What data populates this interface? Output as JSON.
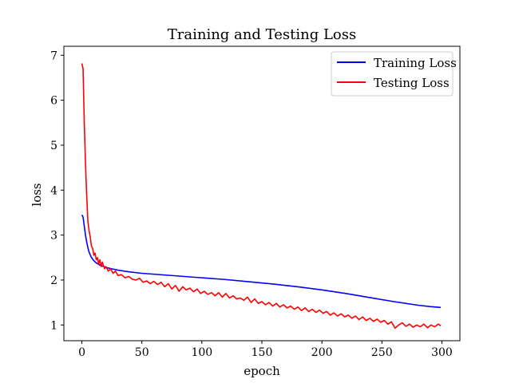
{
  "chart_data": {
    "type": "line",
    "title": "Training and Testing Loss",
    "xlabel": "epoch",
    "ylabel": "loss",
    "xlim": [
      -15,
      315
    ],
    "ylim": [
      0.65,
      7.2
    ],
    "xticks": [
      0,
      50,
      100,
      150,
      200,
      250,
      300
    ],
    "yticks": [
      1,
      2,
      3,
      4,
      5,
      6,
      7
    ],
    "grid": false,
    "legend_position": "top-right",
    "series": [
      {
        "name": "Training Loss",
        "color": "#0000ff",
        "x": [
          0,
          1,
          2,
          3,
          4,
          5,
          6,
          7,
          8,
          10,
          12,
          15,
          20,
          25,
          30,
          40,
          50,
          60,
          80,
          100,
          120,
          140,
          160,
          180,
          200,
          220,
          240,
          260,
          280,
          290,
          299
        ],
        "y": [
          3.45,
          3.4,
          3.2,
          3.0,
          2.85,
          2.72,
          2.62,
          2.56,
          2.5,
          2.43,
          2.38,
          2.33,
          2.28,
          2.25,
          2.22,
          2.18,
          2.15,
          2.13,
          2.09,
          2.05,
          2.01,
          1.96,
          1.91,
          1.85,
          1.78,
          1.7,
          1.61,
          1.52,
          1.44,
          1.41,
          1.39
        ]
      },
      {
        "name": "Testing Loss",
        "color": "#ff0000",
        "x": [
          0,
          1,
          2,
          3,
          4,
          5,
          6,
          7,
          8,
          9,
          10,
          11,
          12,
          13,
          14,
          15,
          16,
          17,
          18,
          19,
          20,
          22,
          24,
          26,
          28,
          30,
          33,
          36,
          39,
          42,
          45,
          48,
          51,
          54,
          57,
          60,
          63,
          66,
          69,
          72,
          75,
          78,
          81,
          84,
          87,
          90,
          93,
          96,
          99,
          102,
          105,
          108,
          111,
          114,
          117,
          120,
          123,
          126,
          129,
          132,
          135,
          138,
          141,
          144,
          147,
          150,
          153,
          156,
          159,
          162,
          165,
          168,
          171,
          174,
          177,
          180,
          183,
          186,
          189,
          192,
          195,
          198,
          201,
          204,
          207,
          210,
          213,
          216,
          219,
          222,
          225,
          228,
          231,
          234,
          237,
          240,
          243,
          246,
          249,
          252,
          255,
          258,
          261,
          264,
          267,
          270,
          273,
          276,
          279,
          282,
          285,
          288,
          291,
          294,
          297,
          299
        ],
        "y": [
          6.82,
          6.7,
          5.5,
          4.6,
          3.9,
          3.3,
          3.1,
          2.95,
          2.75,
          2.7,
          2.55,
          2.6,
          2.45,
          2.5,
          2.35,
          2.45,
          2.3,
          2.4,
          2.32,
          2.25,
          2.3,
          2.2,
          2.25,
          2.15,
          2.2,
          2.1,
          2.12,
          2.05,
          2.08,
          2.02,
          2.0,
          2.04,
          1.95,
          1.98,
          1.92,
          1.97,
          1.9,
          1.95,
          1.85,
          1.92,
          1.8,
          1.88,
          1.75,
          1.85,
          1.78,
          1.82,
          1.74,
          1.8,
          1.7,
          1.75,
          1.68,
          1.72,
          1.65,
          1.72,
          1.62,
          1.7,
          1.6,
          1.65,
          1.58,
          1.6,
          1.55,
          1.62,
          1.5,
          1.58,
          1.48,
          1.52,
          1.45,
          1.5,
          1.42,
          1.48,
          1.4,
          1.45,
          1.38,
          1.42,
          1.35,
          1.4,
          1.32,
          1.38,
          1.3,
          1.35,
          1.28,
          1.33,
          1.26,
          1.3,
          1.22,
          1.27,
          1.2,
          1.25,
          1.18,
          1.22,
          1.15,
          1.2,
          1.12,
          1.18,
          1.1,
          1.15,
          1.08,
          1.13,
          1.06,
          1.1,
          1.02,
          1.07,
          0.93,
          1.0,
          1.05,
          0.97,
          1.02,
          0.95,
          1.0,
          0.96,
          1.02,
          0.94,
          1.0,
          0.96,
          1.02,
          0.98
        ]
      }
    ]
  }
}
